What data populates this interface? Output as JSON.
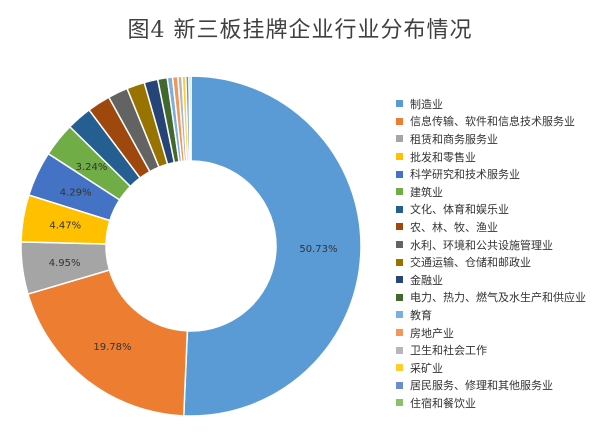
{
  "chart_data": {
    "type": "pie",
    "title": "图4  新三板挂牌企业行业分布情况",
    "donut": true,
    "legend_position": "right",
    "slices": [
      {
        "label": "制造业",
        "value": 50.73,
        "data_label": "50.73%",
        "color": "#5B9BD5"
      },
      {
        "label": "信息传输、软件和信息技术服务业",
        "value": 19.78,
        "data_label": "19.78%",
        "color": "#ED7D31"
      },
      {
        "label": "租赁和商务服务业",
        "value": 4.95,
        "data_label": "4.95%",
        "color": "#A5A5A5"
      },
      {
        "label": "批发和零售业",
        "value": 4.47,
        "data_label": "4.47%",
        "color": "#FFC000"
      },
      {
        "label": "科学研究和技术服务业",
        "value": 4.29,
        "data_label": "4.29%",
        "color": "#4472C4"
      },
      {
        "label": "建筑业",
        "value": 3.24,
        "data_label": "3.24%",
        "color": "#70AD47"
      },
      {
        "label": "文化、体育和娱乐业",
        "value": 2.4,
        "data_label": "",
        "color": "#255E91"
      },
      {
        "label": "农、林、牧、渔业",
        "value": 2.2,
        "data_label": "",
        "color": "#9E480E"
      },
      {
        "label": "水利、环境和公共设施管理业",
        "value": 1.9,
        "data_label": "",
        "color": "#636363"
      },
      {
        "label": "交通运输、仓储和邮政业",
        "value": 1.7,
        "data_label": "",
        "color": "#997300"
      },
      {
        "label": "金融业",
        "value": 1.3,
        "data_label": "",
        "color": "#264478"
      },
      {
        "label": "电力、热力、燃气及水生产和供应业",
        "value": 0.9,
        "data_label": "",
        "color": "#43682B"
      },
      {
        "label": "教育",
        "value": 0.5,
        "data_label": "",
        "color": "#7CAFDD"
      },
      {
        "label": "房地产业",
        "value": 0.5,
        "data_label": "",
        "color": "#F1975A"
      },
      {
        "label": "卫生和社会工作",
        "value": 0.4,
        "data_label": "",
        "color": "#B7B7B7"
      },
      {
        "label": "采矿业",
        "value": 0.35,
        "data_label": "",
        "color": "#FFCD33"
      },
      {
        "label": "居民服务、修理和其他服务业",
        "value": 0.3,
        "data_label": "",
        "color": "#698ED0"
      },
      {
        "label": "住宿和餐饮业",
        "value": 0.19,
        "data_label": "",
        "color": "#8CC168"
      }
    ]
  }
}
